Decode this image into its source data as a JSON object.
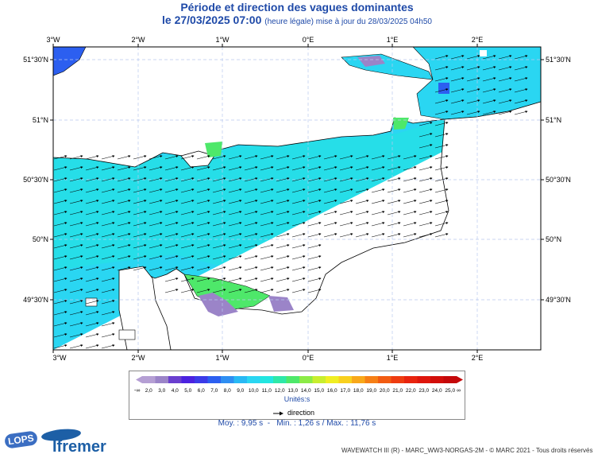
{
  "title": "Période et direction des vagues dominantes",
  "datetime": "le 27/03/2025 07:00",
  "subtitle_note": "(heure légale) mise à jour du 28/03/2025 04h50",
  "lon_labels_top": [
    "3°W",
    "2°W",
    "1°W",
    "0°E",
    "1°E",
    "2°E"
  ],
  "lon_labels_bottom": [
    "3°W",
    "2°W",
    "1°W",
    "0°E",
    "1°E",
    "2°E"
  ],
  "lat_labels_left": [
    "51°30'N",
    "51°N",
    "50°30'N",
    "50°N",
    "49°30'N"
  ],
  "lat_labels_right": [
    "51°30'N",
    "51°N",
    "50°30'N",
    "50°N",
    "49°30'N"
  ],
  "legend": {
    "values": [
      "2,0",
      "3,0",
      "4,0",
      "5,0",
      "6,0",
      "7,0",
      "8,0",
      "9,0",
      "10,0",
      "11,0",
      "12,0",
      "13,0",
      "14,0",
      "15,0",
      "16,0",
      "17,0",
      "18,0",
      "19,0",
      "20,0",
      "21,0",
      "22,0",
      "23,0",
      "24,0",
      "25,0"
    ],
    "colors": [
      "#b59fd4",
      "#9b84c8",
      "#6a3fcf",
      "#4b22e0",
      "#3b3be8",
      "#2c5ff0",
      "#2e8ef2",
      "#28b9f4",
      "#2ad6f2",
      "#22e6e0",
      "#2ee8a8",
      "#4ee86a",
      "#8ceb46",
      "#c8ee2e",
      "#f0ee22",
      "#f8d01e",
      "#f8a81a",
      "#f68016",
      "#f25c12",
      "#ee3c10",
      "#e8240e",
      "#de160c",
      "#d20e0a",
      "#c4080a"
    ],
    "unit": "Unités",
    "direction_label": "direction"
  },
  "stats": {
    "moy": "Moy. : 9,95 s",
    "min": "Min. : 1,26 s",
    "max": "Max. : 11,76 s"
  },
  "footer": "WAVEWATCH III (R) - MARC_WW3-NORGAS-2M - © MARC 2021 - Tous droits réservés",
  "logos": {
    "lops": "LOPS",
    "ifremer": "Ifremer"
  },
  "map_colors": {
    "sea": "#2ad6f2",
    "sea_light": "#22e6e0",
    "land": "#ffffff",
    "green": "#4ee86a",
    "purple": "#9b84c8",
    "blue": "#2c5ff0",
    "frame": "#000000",
    "grid": "#b8c8ee"
  }
}
